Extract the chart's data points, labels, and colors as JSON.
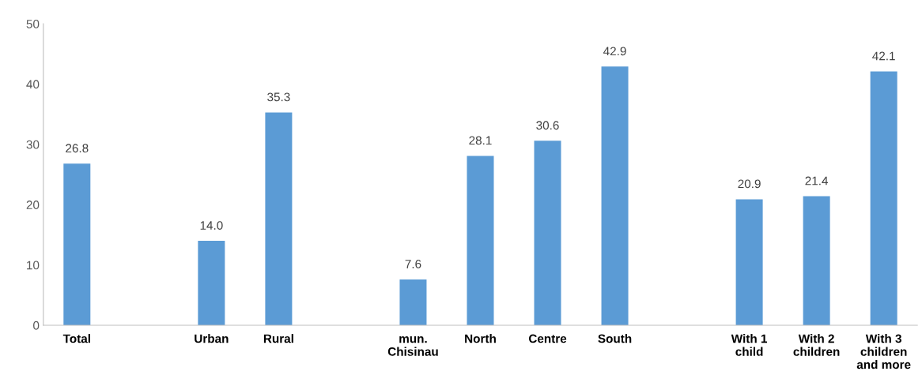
{
  "chart_data": {
    "type": "bar",
    "categories": [
      "Total",
      null,
      "Urban",
      "Rural",
      null,
      "mun.\nChisinau",
      "North",
      "Centre",
      "South",
      null,
      "With 1\nchild",
      "With 2\nchildren",
      "With 3\nchildren\nand more"
    ],
    "values": [
      26.8,
      null,
      14.0,
      35.3,
      null,
      7.6,
      28.1,
      30.6,
      42.9,
      null,
      20.9,
      21.4,
      42.1
    ],
    "value_labels": [
      "26.8",
      null,
      "14.0",
      "35.3",
      null,
      "7.6",
      "28.1",
      "30.6",
      "42.9",
      null,
      "20.9",
      "21.4",
      "42.1"
    ],
    "color": "#5b9bd5",
    "ylim": [
      0,
      50
    ],
    "yticks": [
      0,
      10,
      20,
      30,
      40,
      50
    ],
    "grid": false,
    "legend": false
  }
}
